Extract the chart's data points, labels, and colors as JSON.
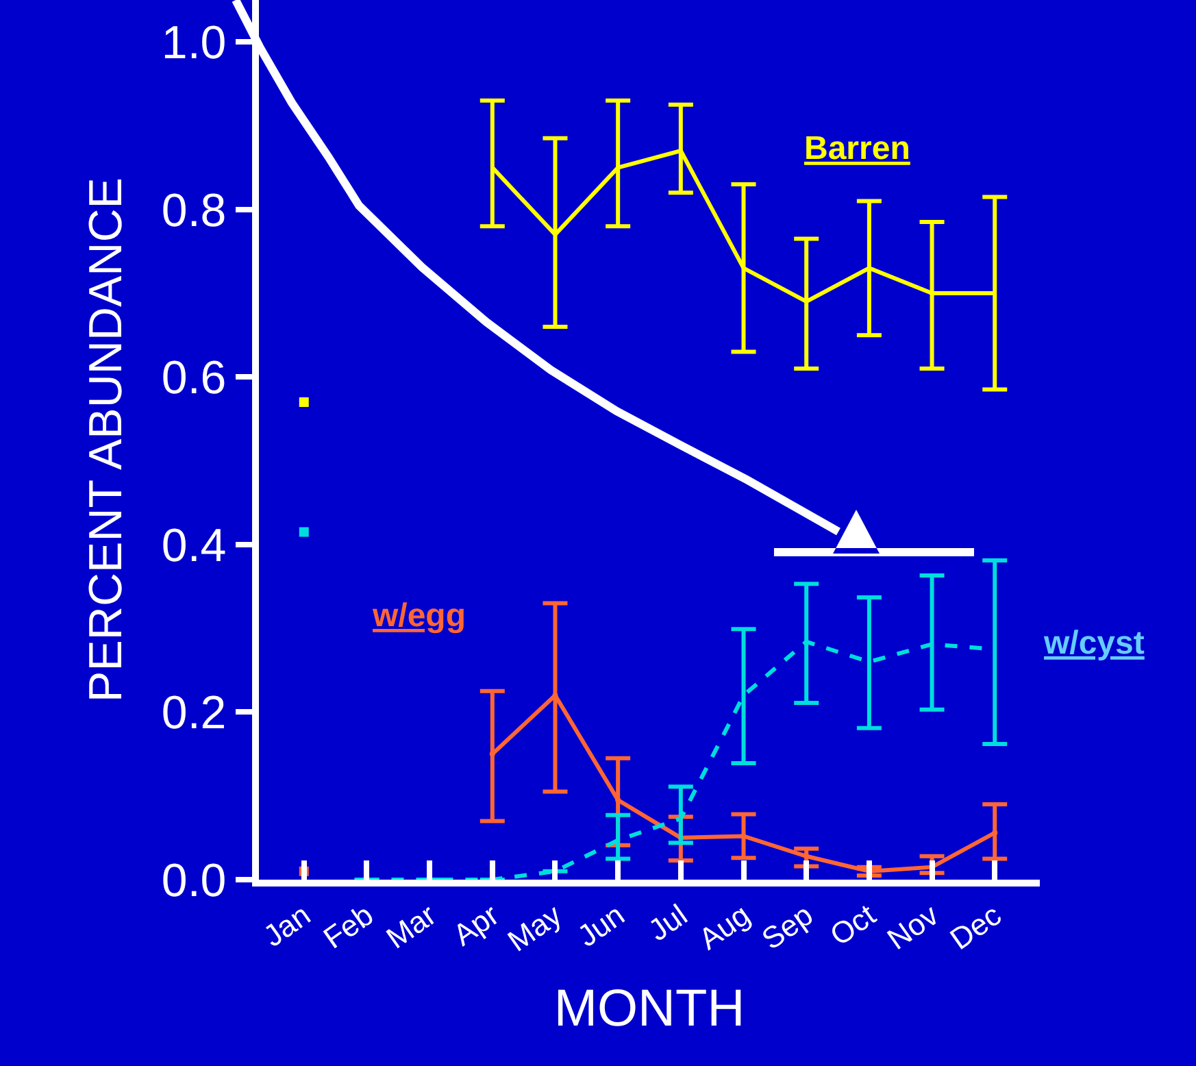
{
  "chart_data": {
    "type": "line",
    "xlabel": "MONTH",
    "ylabel": "PERCENT ABUNDANCE",
    "categories": [
      "Jan",
      "Feb",
      "Mar",
      "Apr",
      "May",
      "Jun",
      "Jul",
      "Aug",
      "Sep",
      "Oct",
      "Nov",
      "Dec"
    ],
    "ylim": [
      0,
      1.05
    ],
    "yticks": [
      {
        "value": 0,
        "label": "0.0"
      },
      {
        "value": 0.2,
        "label": "0.2"
      },
      {
        "value": 0.4,
        "label": "0.4"
      },
      {
        "value": 0.6,
        "label": "0.6"
      },
      {
        "value": 0.8,
        "label": "0.8"
      },
      {
        "value": 1,
        "label": "1.0"
      }
    ],
    "grid": false,
    "series": [
      {
        "color": "#ffff00",
        "line_style": "solid",
        "values": [
          null,
          null,
          null,
          0.85,
          0.77,
          0.85,
          0.87,
          0.73,
          0.69,
          0.73,
          0.7,
          0.7
        ],
        "errors": [
          null,
          null,
          null,
          [
            0.78,
            0.93
          ],
          [
            0.66,
            0.885
          ],
          [
            0.78,
            0.93
          ],
          [
            0.82,
            0.925
          ],
          [
            0.63,
            0.83
          ],
          [
            0.61,
            0.765
          ],
          [
            0.65,
            0.81
          ],
          [
            0.61,
            0.785
          ],
          [
            0.585,
            0.815
          ]
        ]
      },
      {
        "color": "#ff6633",
        "line_style": "solid",
        "marker": "circle",
        "values": [
          null,
          null,
          null,
          0.15,
          0.22,
          0.095,
          0.05,
          0.052,
          0.028,
          0.01,
          0.015,
          0.056
        ],
        "errors": [
          null,
          null,
          null,
          [
            0.07,
            0.225
          ],
          [
            0.105,
            0.33
          ],
          [
            0.041,
            0.145
          ],
          [
            0.023,
            0.075
          ],
          [
            0.026,
            0.078
          ],
          [
            0.016,
            0.037
          ],
          [
            0.005,
            0.015
          ],
          [
            0.008,
            0.028
          ],
          [
            0.025,
            0.09
          ]
        ]
      },
      {
        "color": "#00dddd",
        "line_style": "dashed",
        "values": [
          null,
          0,
          0,
          0,
          0.01,
          0.047,
          0.073,
          0.22,
          0.284,
          0.26,
          0.281,
          0.275
        ],
        "errors": [
          null,
          null,
          null,
          null,
          null,
          [
            0.025,
            0.077
          ],
          [
            0.044,
            0.111
          ],
          [
            0.139,
            0.299
          ],
          [
            0.211,
            0.353
          ],
          [
            0.181,
            0.337
          ],
          [
            0.203,
            0.363
          ],
          [
            0.162,
            0.381
          ]
        ]
      },
      {
        "type": "scatter",
        "color": "#ffff00",
        "marker": "square",
        "values": [
          0.57,
          null,
          null,
          null,
          null,
          null,
          null,
          null,
          null,
          null,
          null,
          null
        ]
      },
      {
        "type": "scatter",
        "color": "#ff6633",
        "marker": "square",
        "values": [
          0.01,
          null,
          null,
          null,
          null,
          null,
          null,
          null,
          null,
          null,
          null,
          null
        ]
      },
      {
        "type": "scatter",
        "color": "#00dddd",
        "marker": "square",
        "values": [
          0.415,
          null,
          null,
          null,
          null,
          null,
          null,
          null,
          null,
          null,
          null,
          null
        ]
      }
    ],
    "annotations": [
      "Barren",
      "w/egg",
      "w/cyst"
    ]
  }
}
